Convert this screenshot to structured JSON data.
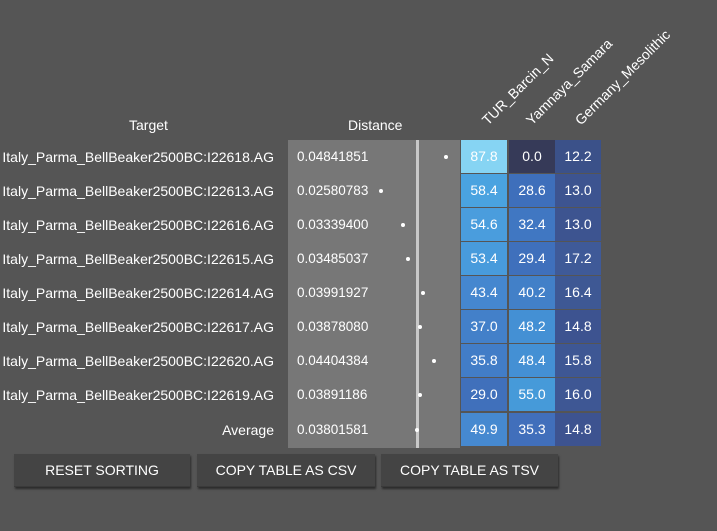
{
  "headers": {
    "target": "Target",
    "distance": "Distance",
    "columns": [
      "TUR_Barcin_N",
      "Yamnaya_Samara",
      "Germany_Mesolithic"
    ]
  },
  "rows": [
    {
      "target": "Italy_Parma_BellBeaker2500BC:I22618.AG",
      "distance": "0.04841851",
      "values": [
        "87.8",
        "0.0",
        "12.2"
      ]
    },
    {
      "target": "Italy_Parma_BellBeaker2500BC:I22613.AG",
      "distance": "0.02580783",
      "values": [
        "58.4",
        "28.6",
        "13.0"
      ]
    },
    {
      "target": "Italy_Parma_BellBeaker2500BC:I22616.AG",
      "distance": "0.03339400",
      "values": [
        "54.6",
        "32.4",
        "13.0"
      ]
    },
    {
      "target": "Italy_Parma_BellBeaker2500BC:I22615.AG",
      "distance": "0.03485037",
      "values": [
        "53.4",
        "29.4",
        "17.2"
      ]
    },
    {
      "target": "Italy_Parma_BellBeaker2500BC:I22614.AG",
      "distance": "0.03991927",
      "values": [
        "43.4",
        "40.2",
        "16.4"
      ]
    },
    {
      "target": "Italy_Parma_BellBeaker2500BC:I22617.AG",
      "distance": "0.03878080",
      "values": [
        "37.0",
        "48.2",
        "14.8"
      ]
    },
    {
      "target": "Italy_Parma_BellBeaker2500BC:I22620.AG",
      "distance": "0.04404384",
      "values": [
        "35.8",
        "48.4",
        "15.8"
      ]
    },
    {
      "target": "Italy_Parma_BellBeaker2500BC:I22619.AG",
      "distance": "0.03891186",
      "values": [
        "29.0",
        "55.0",
        "16.0"
      ]
    },
    {
      "target": "Average",
      "distance": "0.03801581",
      "values": [
        "49.9",
        "35.3",
        "14.8"
      ]
    }
  ],
  "buttons": {
    "reset": "RESET SORTING",
    "csv": "COPY TABLE AS CSV",
    "tsv": "COPY TABLE AS TSV"
  },
  "colors": {
    "background": "#555555",
    "distance_panel": "#777777",
    "button": "#444444"
  }
}
